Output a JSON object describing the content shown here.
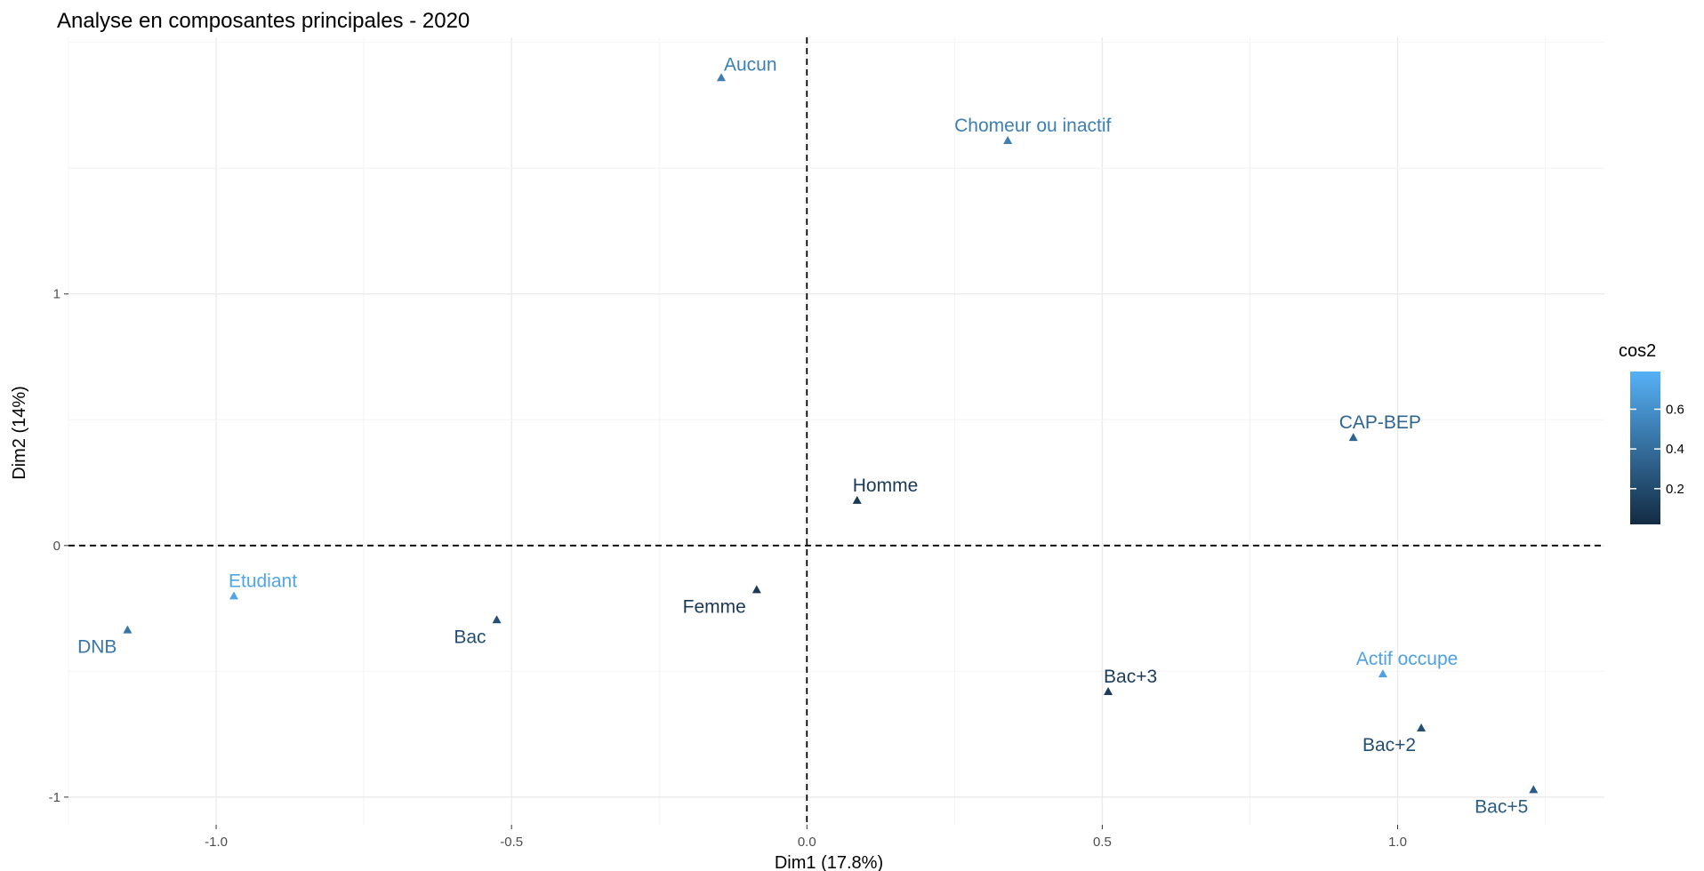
{
  "chart_data": {
    "type": "scatter",
    "title": "Analyse en composantes principales - 2020",
    "xlabel": "Dim1 (17.8%)",
    "ylabel": "Dim2 (14%)",
    "xlim": [
      -1.25,
      1.35
    ],
    "ylim": [
      -1.11,
      2.02
    ],
    "x_ticks": [
      -1.0,
      -0.5,
      0.0,
      0.5,
      1.0
    ],
    "x_tick_labels": [
      "-1.0",
      "-0.5",
      "0.0",
      "0.5",
      "1.0"
    ],
    "y_ticks": [
      -1,
      0,
      1
    ],
    "y_tick_labels": [
      "-1",
      "0",
      "1"
    ],
    "grid": true,
    "reference_lines": {
      "x": 0,
      "y": 0,
      "style": "dashed"
    },
    "marker": "triangle",
    "color_scale": {
      "title": "cos2",
      "min": 0.02,
      "max": 0.79,
      "ticks": [
        0.2,
        0.4,
        0.6
      ],
      "tick_labels": [
        "0.2",
        "0.4",
        "0.6"
      ],
      "low_color": "#132B43",
      "high_color": "#56B1F7",
      "legend_position": "right"
    },
    "points": [
      {
        "label": "Aucun",
        "x": -0.145,
        "y": 1.86,
        "cos2": 0.5
      },
      {
        "label": "Chomeur ou inactif",
        "x": 0.34,
        "y": 1.61,
        "cos2": 0.5
      },
      {
        "label": "CAP-BEP",
        "x": 0.925,
        "y": 0.43,
        "cos2": 0.35
      },
      {
        "label": "Homme",
        "x": 0.085,
        "y": 0.18,
        "cos2": 0.1
      },
      {
        "label": "Etudiant",
        "x": -0.97,
        "y": -0.2,
        "cos2": 0.72
      },
      {
        "label": "DNB",
        "x": -1.15,
        "y": -0.335,
        "cos2": 0.45
      },
      {
        "label": "Bac",
        "x": -0.525,
        "y": -0.295,
        "cos2": 0.22
      },
      {
        "label": "Femme",
        "x": -0.085,
        "y": -0.175,
        "cos2": 0.1
      },
      {
        "label": "Bac+3",
        "x": 0.51,
        "y": -0.58,
        "cos2": 0.12
      },
      {
        "label": "Actif occupe",
        "x": 0.975,
        "y": -0.51,
        "cos2": 0.7
      },
      {
        "label": "Bac+2",
        "x": 1.04,
        "y": -0.725,
        "cos2": 0.22
      },
      {
        "label": "Bac+5",
        "x": 1.23,
        "y": -0.97,
        "cos2": 0.3
      }
    ]
  }
}
